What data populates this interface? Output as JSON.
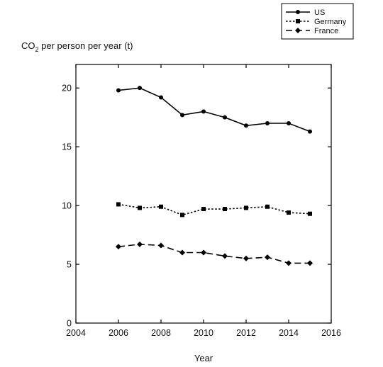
{
  "chart_data": {
    "type": "line",
    "title": "",
    "ylabel_main": "CO",
    "ylabel_sub": "2",
    "ylabel_rest": " per person per year (t)",
    "xlabel": "Year",
    "xlim": [
      2004,
      2016
    ],
    "ylim": [
      0,
      22
    ],
    "xticks": [
      2004,
      2006,
      2008,
      2010,
      2012,
      2014,
      2016
    ],
    "yticks": [
      0,
      5,
      10,
      15,
      20
    ],
    "grid": false,
    "legend_position": "top-right",
    "x": [
      2006,
      2007,
      2008,
      2009,
      2010,
      2011,
      2012,
      2013,
      2014,
      2015
    ],
    "series": [
      {
        "name": "US",
        "marker": "circle",
        "line_style": "solid",
        "values": [
          19.8,
          20.0,
          19.2,
          17.7,
          18.0,
          17.5,
          16.8,
          17.0,
          17.0,
          16.3
        ]
      },
      {
        "name": "Germany",
        "marker": "square",
        "line_style": "dotted",
        "values": [
          10.1,
          9.8,
          9.9,
          9.2,
          9.7,
          9.7,
          9.8,
          9.9,
          9.4,
          9.3
        ]
      },
      {
        "name": "France",
        "marker": "diamond",
        "line_style": "dashed",
        "values": [
          6.5,
          6.7,
          6.6,
          6.0,
          6.0,
          5.7,
          5.5,
          5.6,
          5.1,
          5.1
        ]
      }
    ]
  }
}
